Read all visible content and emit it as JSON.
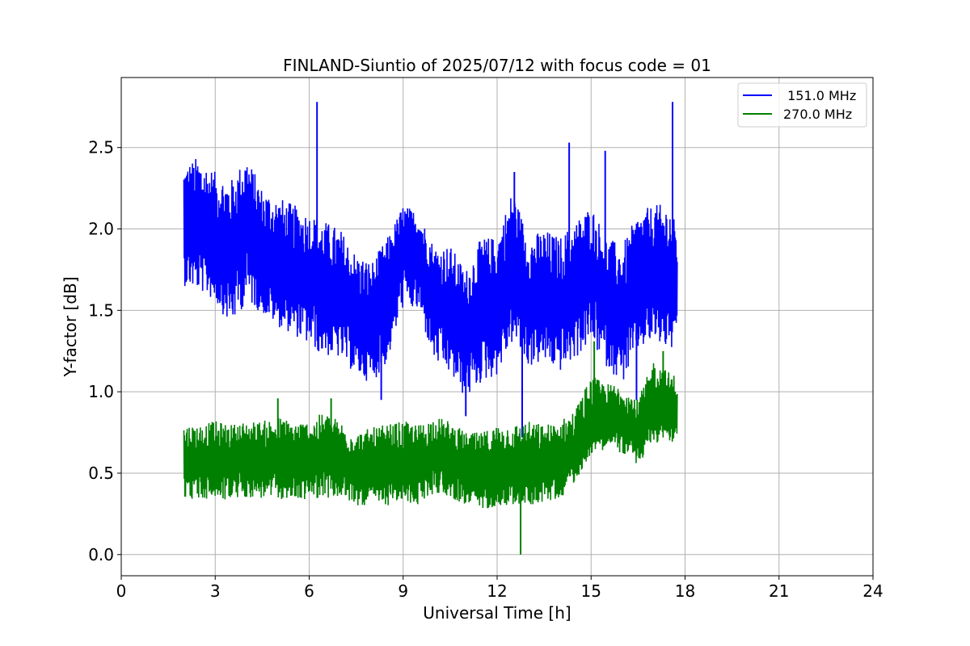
{
  "chart_data": {
    "type": "line",
    "title": "FINLAND-Siuntio of 2025/07/12 with focus code = 01",
    "xlabel": "Universal Time [h]",
    "ylabel": "Y-factor [dB]",
    "xlim": [
      0,
      24
    ],
    "ylim": [
      -0.13,
      2.93
    ],
    "xticks": [
      0,
      3,
      6,
      9,
      12,
      15,
      18,
      21,
      24
    ],
    "yticks": [
      0.0,
      0.5,
      1.0,
      1.5,
      2.0,
      2.5
    ],
    "ytick_labels": [
      "0.0",
      "0.5",
      "1.0",
      "1.5",
      "2.0",
      "2.5"
    ],
    "grid": true,
    "legend_position": "top-right",
    "series": [
      {
        "name": " 151.0 MHz",
        "color": "#0000ff",
        "x": [
          2.0,
          2.5,
          3.0,
          3.5,
          4.0,
          4.5,
          5.0,
          5.5,
          6.0,
          6.5,
          7.0,
          7.5,
          8.0,
          8.5,
          9.0,
          9.5,
          10.0,
          10.5,
          11.0,
          11.5,
          12.0,
          12.5,
          13.0,
          13.5,
          14.0,
          14.5,
          15.0,
          15.5,
          16.0,
          16.5,
          17.0,
          17.5,
          17.75
        ],
        "y": [
          2.0,
          1.97,
          1.93,
          1.85,
          2.05,
          1.85,
          1.75,
          1.72,
          1.7,
          1.62,
          1.58,
          1.45,
          1.42,
          1.55,
          1.9,
          1.85,
          1.55,
          1.5,
          1.35,
          1.55,
          1.55,
          1.8,
          1.55,
          1.58,
          1.52,
          1.62,
          1.75,
          1.55,
          1.45,
          1.65,
          1.75,
          1.7,
          1.65
        ],
        "y_low": [
          1.65,
          1.62,
          1.55,
          1.4,
          1.55,
          1.48,
          1.4,
          1.35,
          1.28,
          1.22,
          1.2,
          1.1,
          1.05,
          1.18,
          1.52,
          1.48,
          1.18,
          1.1,
          0.95,
          1.05,
          1.1,
          1.3,
          1.15,
          1.18,
          1.12,
          1.2,
          1.3,
          1.15,
          1.05,
          1.25,
          1.3,
          1.25,
          1.25
        ],
        "y_high": [
          2.4,
          2.45,
          2.35,
          2.3,
          2.45,
          2.25,
          2.2,
          2.15,
          2.1,
          2.05,
          2.0,
          1.85,
          1.8,
          1.95,
          2.15,
          2.1,
          1.9,
          1.9,
          1.75,
          1.95,
          1.95,
          2.25,
          1.95,
          2.0,
          1.95,
          2.05,
          2.15,
          1.95,
          1.9,
          2.1,
          2.15,
          2.15,
          2.0
        ],
        "spikes": [
          [
            6.25,
            2.78
          ],
          [
            6.3,
            1.25
          ],
          [
            8.3,
            0.95
          ],
          [
            11.0,
            0.85
          ],
          [
            12.55,
            2.35
          ],
          [
            12.8,
            0.72
          ],
          [
            14.3,
            2.53
          ],
          [
            15.45,
            2.48
          ],
          [
            17.6,
            2.78
          ],
          [
            16.45,
            0.95
          ]
        ]
      },
      {
        "name": "270.0 MHz",
        "color": "#008000",
        "x": [
          2.0,
          2.5,
          3.0,
          3.5,
          4.0,
          4.5,
          5.0,
          5.5,
          6.0,
          6.5,
          7.0,
          7.5,
          8.0,
          8.5,
          9.0,
          9.5,
          10.0,
          10.5,
          11.0,
          11.5,
          12.0,
          12.5,
          13.0,
          13.5,
          14.0,
          14.5,
          15.0,
          15.5,
          16.0,
          16.5,
          17.0,
          17.5,
          17.75
        ],
        "y": [
          0.58,
          0.57,
          0.58,
          0.57,
          0.59,
          0.58,
          0.58,
          0.57,
          0.58,
          0.59,
          0.58,
          0.52,
          0.52,
          0.53,
          0.55,
          0.55,
          0.62,
          0.58,
          0.52,
          0.5,
          0.55,
          0.55,
          0.55,
          0.55,
          0.57,
          0.62,
          0.8,
          0.86,
          0.82,
          0.72,
          0.92,
          0.9,
          0.88
        ],
        "y_low": [
          0.35,
          0.33,
          0.34,
          0.33,
          0.35,
          0.34,
          0.34,
          0.33,
          0.34,
          0.35,
          0.34,
          0.3,
          0.3,
          0.3,
          0.32,
          0.3,
          0.38,
          0.35,
          0.3,
          0.27,
          0.3,
          0.3,
          0.3,
          0.32,
          0.34,
          0.45,
          0.62,
          0.65,
          0.62,
          0.55,
          0.68,
          0.7,
          0.66
        ],
        "y_high": [
          0.8,
          0.8,
          0.82,
          0.8,
          0.82,
          0.82,
          0.85,
          0.82,
          0.82,
          0.88,
          0.82,
          0.75,
          0.78,
          0.8,
          0.82,
          0.8,
          0.85,
          0.82,
          0.75,
          0.75,
          0.8,
          0.8,
          0.82,
          0.8,
          0.82,
          0.9,
          1.1,
          1.05,
          1.05,
          0.95,
          1.2,
          1.12,
          1.1
        ],
        "spikes": [
          [
            12.75,
            0.0
          ],
          [
            15.1,
            1.31
          ],
          [
            17.3,
            1.25
          ],
          [
            5.0,
            0.96
          ],
          [
            6.7,
            0.96
          ]
        ]
      }
    ]
  }
}
